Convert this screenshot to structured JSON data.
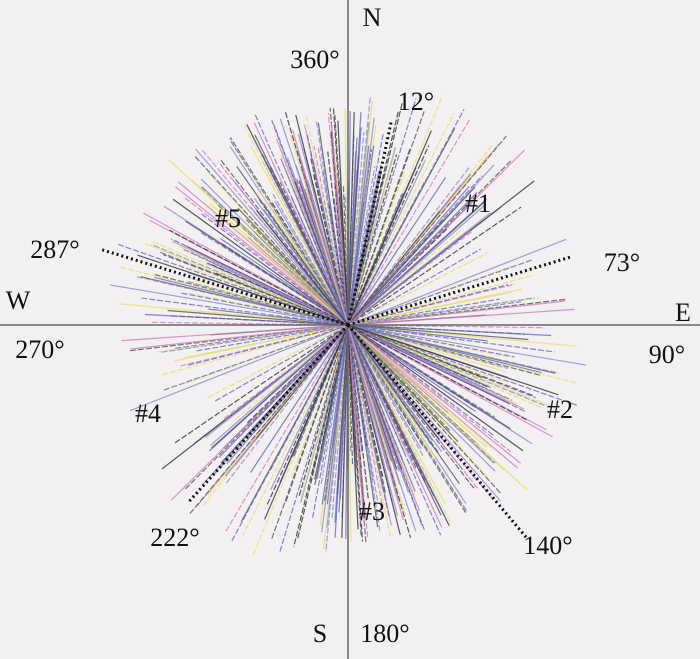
{
  "axes": [
    {
      "letter": "N",
      "angle": 360,
      "label": "360°"
    },
    {
      "letter": "E",
      "angle": 90,
      "label": "90°"
    },
    {
      "letter": "S",
      "angle": 180,
      "label": "180°"
    },
    {
      "letter": "W",
      "angle": 270,
      "label": "270°"
    }
  ],
  "boundaries": [
    {
      "angle": 12,
      "label": "12°"
    },
    {
      "angle": 73,
      "label": "73°"
    },
    {
      "angle": 140,
      "label": "140°"
    },
    {
      "angle": 222,
      "label": "222°"
    },
    {
      "angle": 287,
      "label": "287°"
    }
  ],
  "sets": [
    "#1",
    "#2",
    "#3",
    "#4",
    "#5"
  ]
}
